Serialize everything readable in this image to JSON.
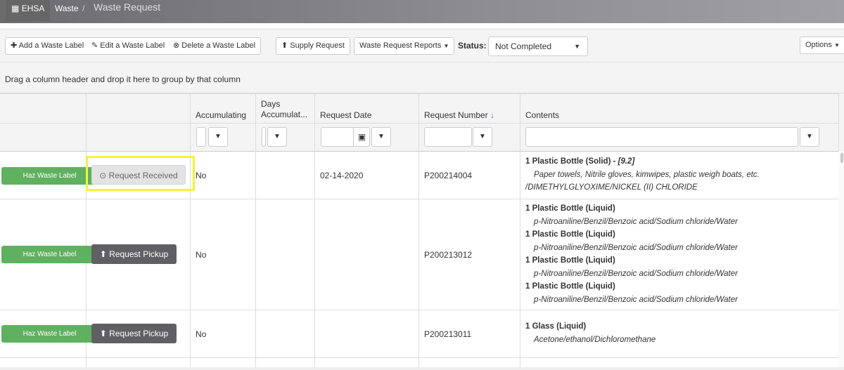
{
  "header": {
    "app": "EHSA",
    "breadcrumb": [
      "Waste",
      "Waste Request"
    ],
    "separator": "/"
  },
  "toolbar": {
    "add": "Add a Waste Label",
    "edit": "Edit a Waste Label",
    "delete": "Delete a Waste Label",
    "supply": "Supply Request",
    "reports": "Waste Request Reports",
    "status_label": "Status:",
    "status_value": "Not Completed",
    "options": "Options"
  },
  "group_hint": "Drag a column header and drop it here to group by that column",
  "columns": [
    "",
    "",
    "Accumulating",
    "Days Accumulat...",
    "Request Date",
    "Request Number",
    "Contents"
  ],
  "sort_indicator": "↓",
  "colors": {
    "label_button": "#5fb15f",
    "pickup_button": "#606064",
    "highlight": "#f6f23a"
  },
  "rows": [
    {
      "label_btn": "Haz Waste Label",
      "action": "Request Received",
      "accumulating": "No",
      "days": "",
      "date": "02-14-2020",
      "number": "P200214004",
      "contents": [
        {
          "container": "1 Plastic Bottle (Solid) - ",
          "extra": "[9.2]",
          "desc": "Paper towels, Nitrile gloves, kimwipes, plastic weigh boats, etc.",
          "desc2": "/DIMETHYLGLYOXIME/NICKEL (II) CHLORIDE"
        }
      ]
    },
    {
      "label_btn": "Haz Waste Label",
      "action": "Request Pickup",
      "accumulating": "No",
      "days": "",
      "date": "",
      "number": "P200213012",
      "contents": [
        {
          "container": "1 Plastic Bottle (Liquid)",
          "desc": "p-Nitroaniline/Benzil/Benzoic acid/Sodium chloride/Water"
        },
        {
          "container": "1 Plastic Bottle (Liquid)",
          "desc": "p-Nitroaniline/Benzil/Benzoic acid/Sodium chloride/Water"
        },
        {
          "container": "1 Plastic Bottle (Liquid)",
          "desc": "p-Nitroaniline/Benzil/Benzoic acid/Sodium chloride/Water"
        },
        {
          "container": "1 Plastic Bottle (Liquid)",
          "desc": "p-Nitroaniline/Benzil/Benzoic acid/Sodium chloride/Water"
        }
      ]
    },
    {
      "label_btn": "Haz Waste Label",
      "action": "Request Pickup",
      "accumulating": "No",
      "days": "",
      "date": "",
      "number": "P200213011",
      "contents": [
        {
          "container": "1 Glass (Liquid)",
          "desc": "Acetone/ethanol/Dichloromethane"
        }
      ]
    }
  ]
}
